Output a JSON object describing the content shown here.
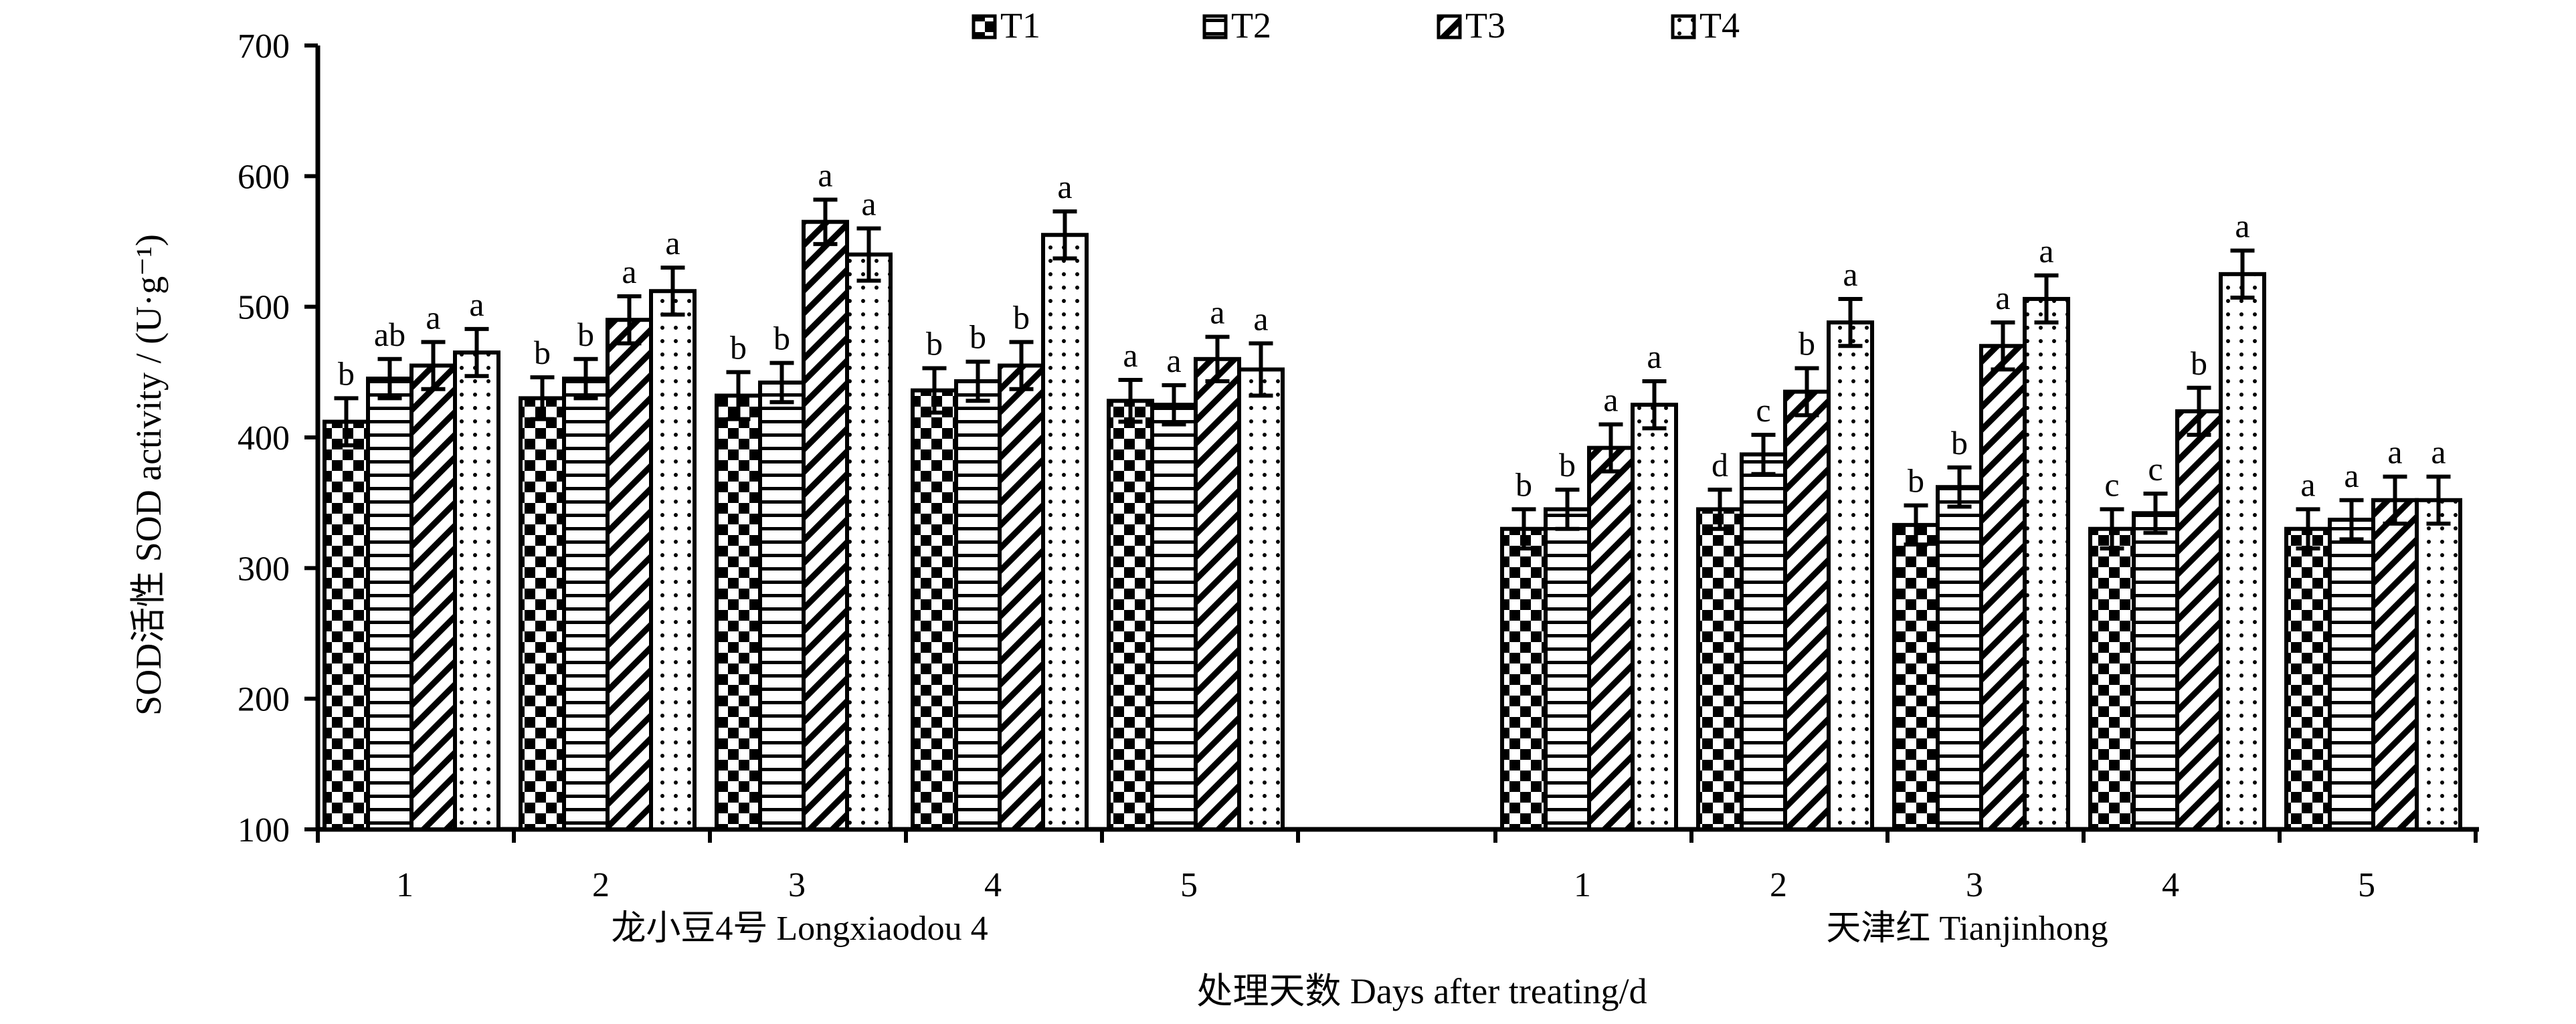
{
  "chart_data": {
    "type": "bar",
    "ylabel": "SOD活性  SOD activity / (U·g⁻¹)",
    "xlabel": "处理天数 Days after treating/d",
    "ylim": [
      100,
      700
    ],
    "yticks": [
      100,
      200,
      300,
      400,
      500,
      600,
      700
    ],
    "legend_position": "top",
    "series_names": [
      "T1",
      "T2",
      "T3",
      "T4"
    ],
    "groups": [
      {
        "name": "龙小豆4号 Longxiaodou 4",
        "categories": [
          "1",
          "2",
          "3",
          "4",
          "5"
        ],
        "values": [
          [
            412,
            445,
            455,
            465
          ],
          [
            430,
            445,
            490,
            512
          ],
          [
            432,
            442,
            565,
            540
          ],
          [
            436,
            443,
            455,
            555
          ],
          [
            428,
            425,
            460,
            452
          ]
        ],
        "errors": [
          [
            18,
            15,
            18,
            18
          ],
          [
            16,
            15,
            18,
            18
          ],
          [
            18,
            15,
            17,
            20
          ],
          [
            17,
            15,
            18,
            18
          ],
          [
            16,
            15,
            17,
            20
          ]
        ],
        "labels": [
          [
            "b",
            "ab",
            "a",
            "a"
          ],
          [
            "b",
            "b",
            "a",
            "a"
          ],
          [
            "b",
            "b",
            "a",
            "a"
          ],
          [
            "b",
            "b",
            "b",
            "a"
          ],
          [
            "a",
            "a",
            "a",
            "a"
          ]
        ]
      },
      {
        "name": "天津红 Tianjinhong",
        "categories": [
          "1",
          "2",
          "3",
          "4",
          "5"
        ],
        "values": [
          [
            330,
            345,
            392,
            425
          ],
          [
            345,
            387,
            435,
            488
          ],
          [
            333,
            362,
            470,
            506
          ],
          [
            330,
            342,
            420,
            525
          ],
          [
            330,
            337,
            352,
            352
          ]
        ],
        "errors": [
          [
            15,
            15,
            18,
            18
          ],
          [
            15,
            15,
            18,
            18
          ],
          [
            15,
            15,
            18,
            18
          ],
          [
            15,
            15,
            18,
            18
          ],
          [
            15,
            15,
            18,
            18
          ]
        ],
        "labels": [
          [
            "b",
            "b",
            "a",
            "a"
          ],
          [
            "d",
            "c",
            "b",
            "a"
          ],
          [
            "b",
            "b",
            "a",
            "a"
          ],
          [
            "c",
            "c",
            "b",
            "a"
          ],
          [
            "a",
            "a",
            "a",
            "a"
          ]
        ]
      }
    ]
  }
}
